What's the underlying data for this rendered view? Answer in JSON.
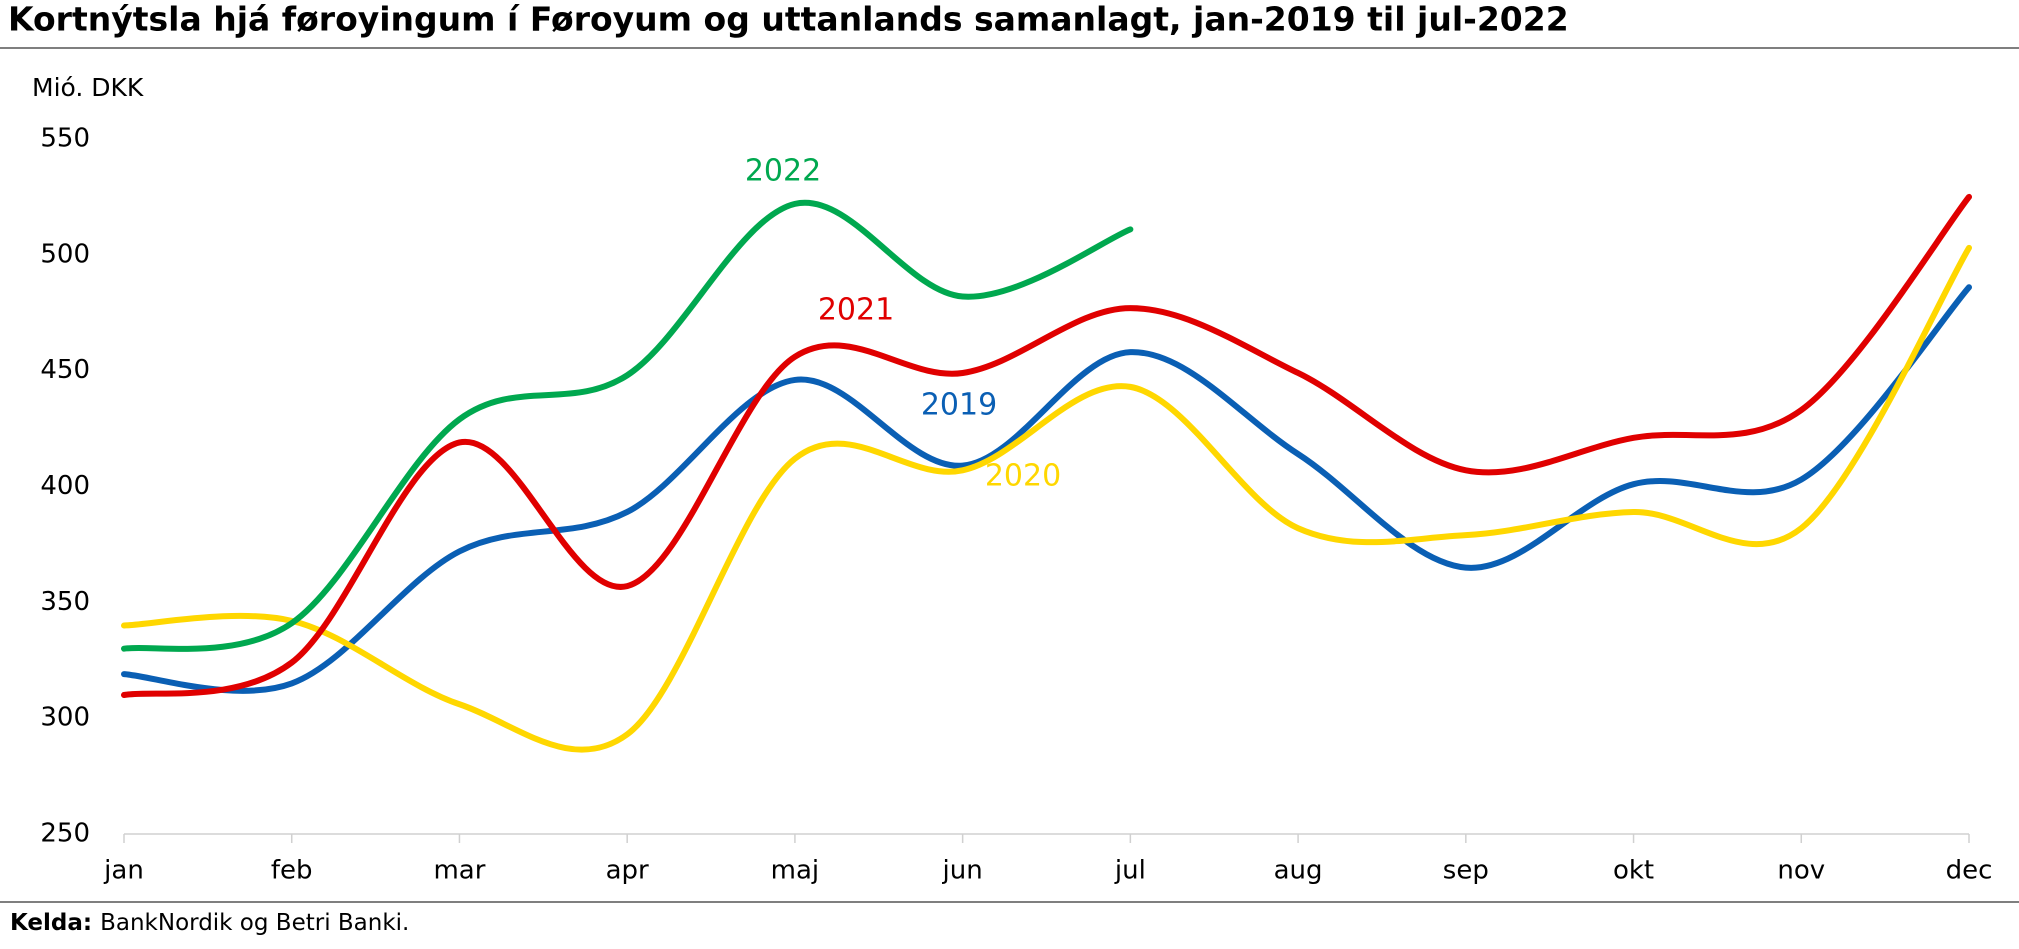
{
  "chart_data": {
    "type": "line",
    "title": "Kortnýtsla hjá føroyingum í Føroyum og uttanlands samanlagt, jan-2019 til jul-2022",
    "y_label": "Mió. DKK",
    "categories": [
      "jan",
      "feb",
      "mar",
      "apr",
      "maj",
      "jun",
      "jul",
      "aug",
      "sep",
      "okt",
      "nov",
      "dec"
    ],
    "series": [
      {
        "name": "2019",
        "color": "#0a5fb4",
        "values": [
          319,
          315,
          372,
          389,
          446,
          409,
          458,
          414,
          365,
          401,
          403,
          486
        ]
      },
      {
        "name": "2020",
        "color": "#ffd700",
        "values": [
          340,
          342,
          306,
          293,
          412,
          407,
          443,
          382,
          379,
          389,
          382,
          503
        ]
      },
      {
        "name": "2021",
        "color": "#e00000",
        "values": [
          310,
          324,
          419,
          357,
          456,
          449,
          477,
          449,
          407,
          421,
          433,
          525
        ]
      },
      {
        "name": "2022",
        "color": "#00a84f",
        "values": [
          330,
          341,
          429,
          448,
          522,
          482,
          511,
          null,
          null,
          null,
          null,
          null
        ]
      }
    ],
    "ylim": [
      250,
      550
    ],
    "yticks": [
      250,
      300,
      350,
      400,
      450,
      500,
      550
    ],
    "grid": false,
    "source_label": "Kelda:",
    "source_text": "BankNordik og Betri Banki."
  }
}
